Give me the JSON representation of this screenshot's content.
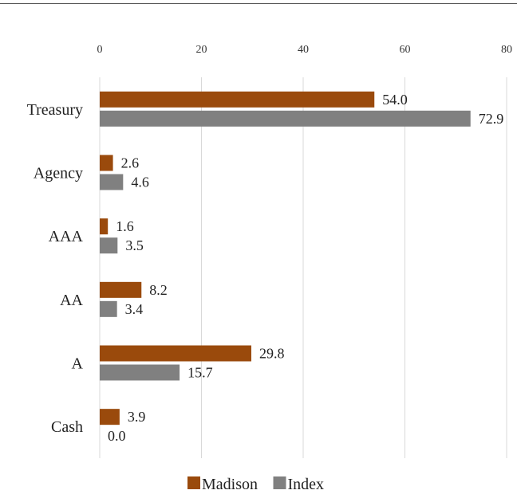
{
  "chart_data": {
    "type": "bar",
    "orientation": "horizontal",
    "categories": [
      "Treasury",
      "Agency",
      "AAA",
      "AA",
      "A",
      "Cash"
    ],
    "series": [
      {
        "name": "Madison",
        "color": "#9a4a0c",
        "values": [
          54.0,
          2.6,
          1.6,
          8.2,
          29.8,
          3.9
        ]
      },
      {
        "name": "Index",
        "color": "#808080",
        "values": [
          72.9,
          4.6,
          3.5,
          3.4,
          15.7,
          0.0
        ]
      }
    ],
    "xlim": [
      0,
      80
    ],
    "xticks": [
      0,
      20,
      40,
      60,
      80
    ],
    "value_labels": [
      [
        "54.0",
        "2.6",
        "1.6",
        "8.2",
        "29.8",
        "3.9"
      ],
      [
        "72.9",
        "4.6",
        "3.5",
        "3.4",
        "15.7",
        "0.0"
      ]
    ],
    "x_axis_position": "top",
    "grid": true,
    "legend_position": "bottom",
    "title": "",
    "xlabel": "",
    "ylabel": ""
  }
}
